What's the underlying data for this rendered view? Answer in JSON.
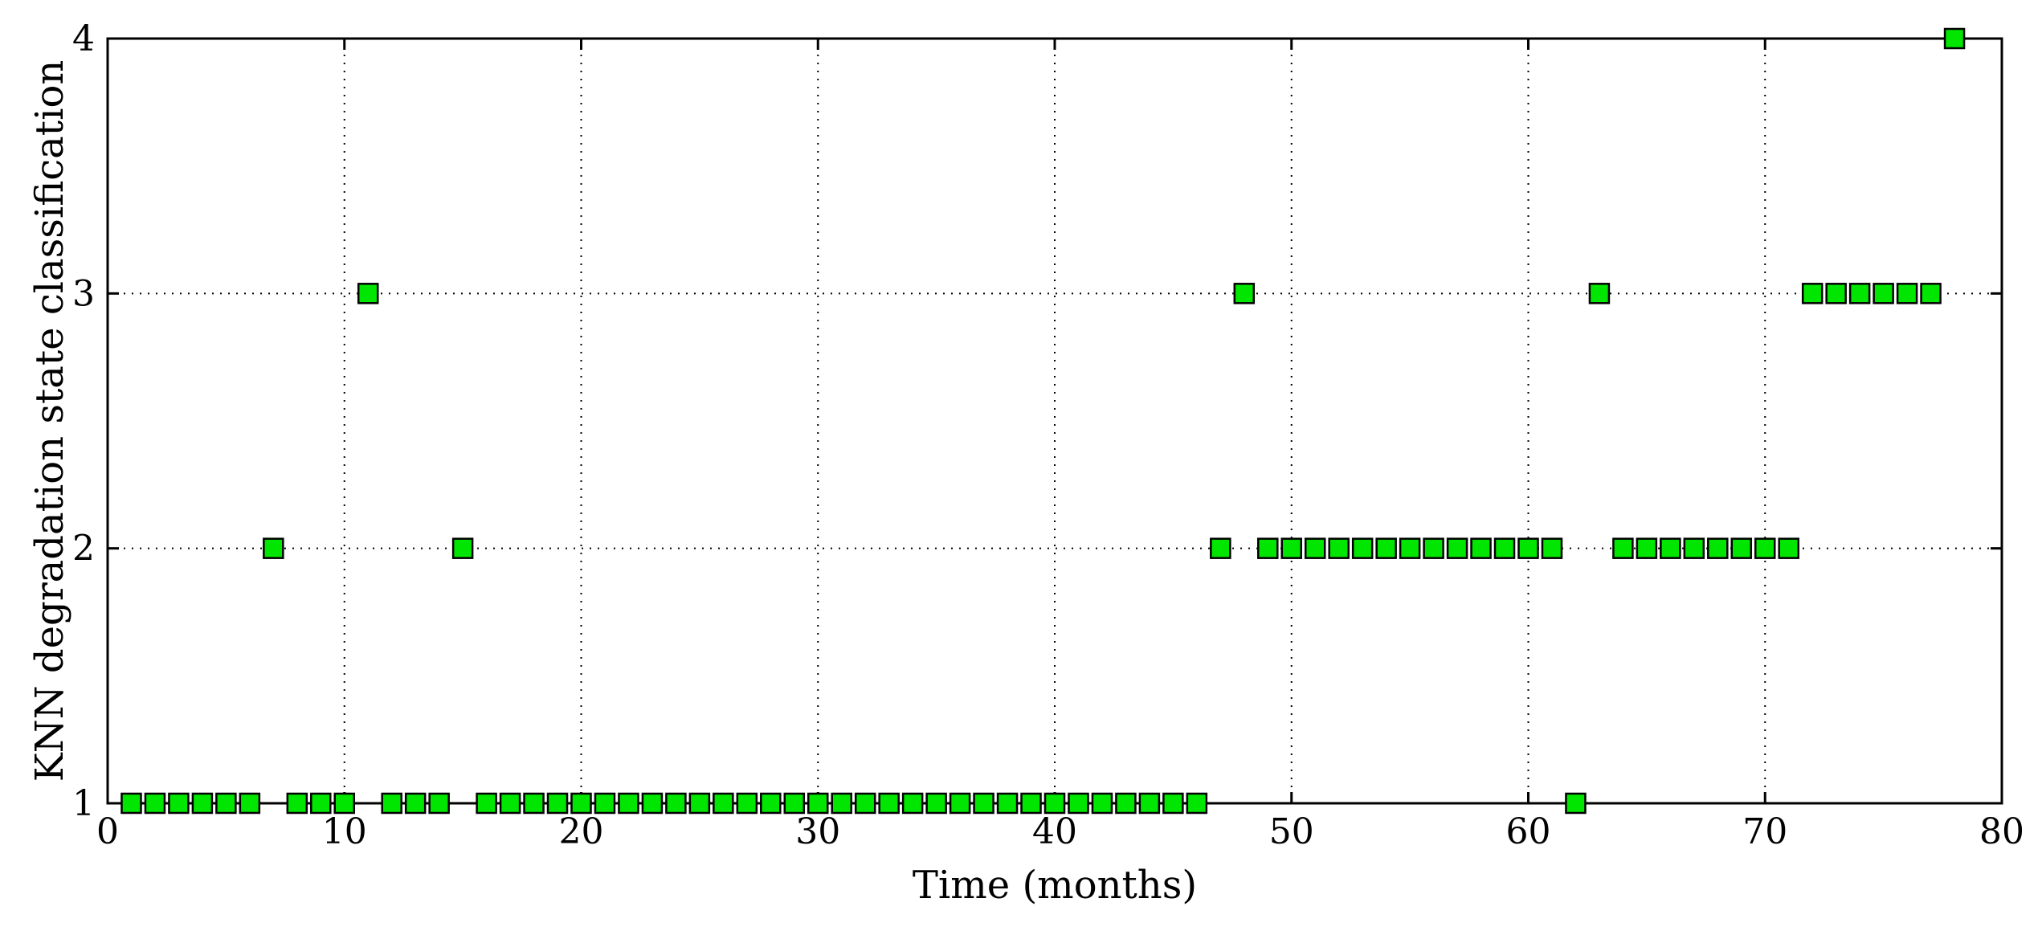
{
  "chart_data": {
    "type": "scatter",
    "xlabel": "Time (months)",
    "ylabel": "KNN degradation state classification",
    "xlim": [
      0,
      80
    ],
    "ylim": [
      1,
      4
    ],
    "xticks": [
      0,
      10,
      20,
      30,
      40,
      50,
      60,
      70,
      80
    ],
    "yticks": [
      1,
      2,
      3,
      4
    ],
    "grid": true,
    "marker": "square",
    "marker_color": "#00e600",
    "marker_edge_color": "#000000",
    "series": [
      {
        "x": [
          1,
          2,
          3,
          4,
          5,
          6,
          7,
          8,
          9,
          10,
          11,
          12,
          13,
          14,
          15,
          16,
          17,
          18,
          19,
          20,
          21,
          22,
          23,
          24,
          25,
          26,
          27,
          28,
          29,
          30,
          31,
          32,
          33,
          34,
          35,
          36,
          37,
          38,
          39,
          40,
          41,
          42,
          43,
          44,
          45,
          46,
          47,
          48,
          49,
          50,
          51,
          52,
          53,
          54,
          55,
          56,
          57,
          58,
          59,
          60,
          61,
          62,
          63,
          64,
          65,
          66,
          67,
          68,
          69,
          70,
          71,
          72,
          73,
          74,
          75,
          76,
          77,
          78
        ],
        "y": [
          1,
          1,
          1,
          1,
          1,
          1,
          2,
          1,
          1,
          1,
          3,
          1,
          1,
          1,
          2,
          1,
          1,
          1,
          1,
          1,
          1,
          1,
          1,
          1,
          1,
          1,
          1,
          1,
          1,
          1,
          1,
          1,
          1,
          1,
          1,
          1,
          1,
          1,
          1,
          1,
          1,
          1,
          1,
          1,
          1,
          1,
          2,
          3,
          2,
          2,
          2,
          2,
          2,
          2,
          2,
          2,
          2,
          2,
          2,
          2,
          2,
          1,
          3,
          2,
          2,
          2,
          2,
          2,
          2,
          2,
          2,
          3,
          3,
          3,
          3,
          3,
          3,
          4
        ]
      }
    ]
  }
}
